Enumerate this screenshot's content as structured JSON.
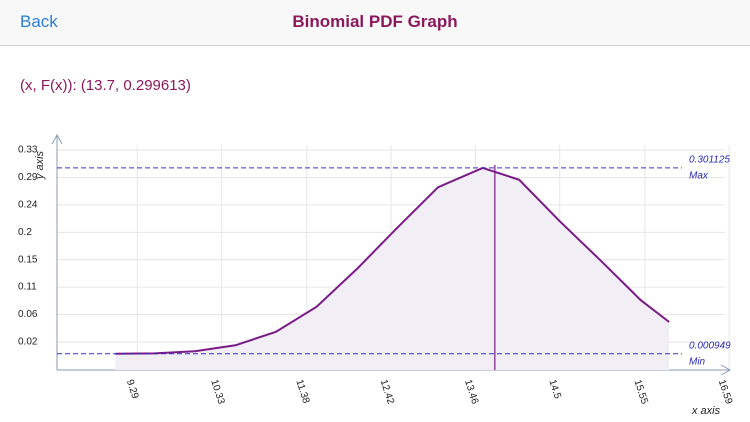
{
  "header": {
    "back": "Back",
    "title": "Binomial PDF Graph"
  },
  "readout": "(x, F(x)): (13.7, 0.299613)",
  "chart_data": {
    "type": "line",
    "x_label": "x axis",
    "y_label": "y axis",
    "x": [
      9.02,
      9.5,
      10,
      10.5,
      11,
      11.5,
      12,
      12.5,
      13,
      13.55,
      14,
      14.5,
      15,
      15.5,
      15.85
    ],
    "values": [
      0.000949,
      0.0015,
      0.005,
      0.0146,
      0.0364,
      0.0768,
      0.138,
      0.205,
      0.27,
      0.301125,
      0.282,
      0.215,
      0.152,
      0.0875,
      0.0523
    ],
    "color": "#7a1a86",
    "fill": "#f2eef6",
    "xlim": [
      8.3,
      16.6
    ],
    "ylim": [
      -0.0253,
      0.3543
    ],
    "xticks": [
      9.29,
      10.33,
      11.38,
      12.42,
      13.46,
      14.5,
      15.55,
      16.59
    ],
    "yticks": [
      {
        "value": 0.02,
        "label": "0.02"
      },
      {
        "value": 0.0643,
        "label": "0.06"
      },
      {
        "value": 0.1086,
        "label": "0.11"
      },
      {
        "value": 0.1529,
        "label": "0.15"
      },
      {
        "value": 0.1971,
        "label": "0.2"
      },
      {
        "value": 0.2414,
        "label": "0.24"
      },
      {
        "value": 0.2857,
        "label": "0.29"
      },
      {
        "value": 0.33,
        "label": "0.33"
      }
    ],
    "grid": true,
    "max_line": {
      "value": 0.301125,
      "label": "Max"
    },
    "min_line": {
      "value": 0.000949,
      "label": "Min"
    },
    "cursor_x": 13.7
  }
}
